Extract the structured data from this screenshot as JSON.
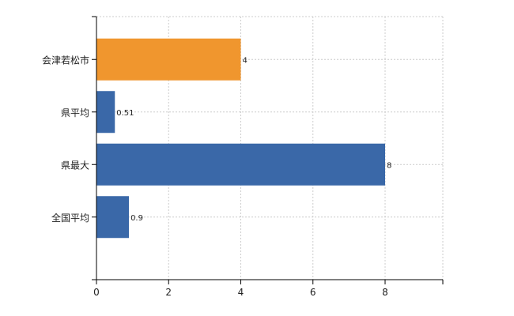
{
  "chart_data": {
    "type": "bar",
    "orientation": "horizontal",
    "categories": [
      "会津若松市",
      "県平均",
      "県最大",
      "全国平均"
    ],
    "values": [
      4,
      0.51,
      8,
      0.9
    ],
    "value_labels": [
      "4",
      "0.51",
      "8",
      "0.9"
    ],
    "bar_colors": [
      "#f0962e",
      "#3a68a8",
      "#3a68a8",
      "#3a68a8"
    ],
    "xlim": [
      0,
      9.6
    ],
    "xticks": [
      0,
      2,
      4,
      6,
      8
    ],
    "xtick_labels": [
      "0",
      "2",
      "4",
      "6",
      "8"
    ],
    "grid": true,
    "grid_style": "dashed",
    "title": "",
    "xlabel": "",
    "ylabel": ""
  }
}
